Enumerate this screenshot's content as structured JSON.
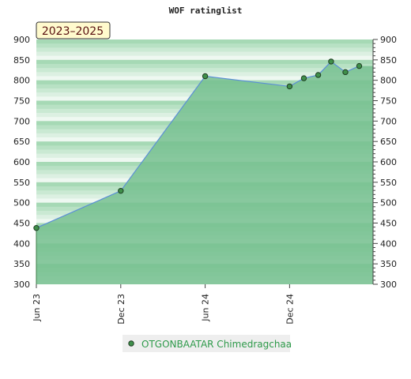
{
  "chart_data": {
    "type": "area",
    "title": "WOF ratinglist",
    "badge": "2023–2025",
    "xlabel": "",
    "ylabel": "",
    "ylim": [
      300,
      900
    ],
    "y_ticks": [
      300,
      350,
      400,
      450,
      500,
      550,
      600,
      650,
      700,
      750,
      800,
      850,
      900
    ],
    "y_tick_labels": [
      "300",
      "350",
      "400",
      "450",
      "500",
      "550",
      "600",
      "650",
      "700",
      "750",
      "800",
      "850",
      "900"
    ],
    "x_ticks": [
      "2023-06-01",
      "2023-12-01",
      "2024-06-01",
      "2024-12-01"
    ],
    "x_tick_labels": [
      "Jun 23",
      "Dec 23",
      "Jun 24",
      "Dec 24"
    ],
    "x_range": [
      "2023-06-01",
      "2025-05-31"
    ],
    "grid": true,
    "legend_position": "bottom",
    "series": [
      {
        "name": "OTGONBAATAR Chimedragchaa",
        "color": "#5b8fd6",
        "marker_color": "#3f8f4a",
        "points": [
          {
            "x": "2023-06-01",
            "y": 438
          },
          {
            "x": "2023-12-01",
            "y": 529
          },
          {
            "x": "2024-06-01",
            "y": 810
          },
          {
            "x": "2024-12-01",
            "y": 785
          },
          {
            "x": "2025-01-01",
            "y": 805
          },
          {
            "x": "2025-02-01",
            "y": 813
          },
          {
            "x": "2025-03-01",
            "y": 846
          },
          {
            "x": "2025-04-01",
            "y": 820
          },
          {
            "x": "2025-05-01",
            "y": 835
          }
        ]
      }
    ],
    "colors": {
      "area_fill": "#76c08f",
      "stripe_dark": "#a6d9b5",
      "stripe_light": "#eef8f1",
      "badge_fill": "#fffacd"
    }
  }
}
